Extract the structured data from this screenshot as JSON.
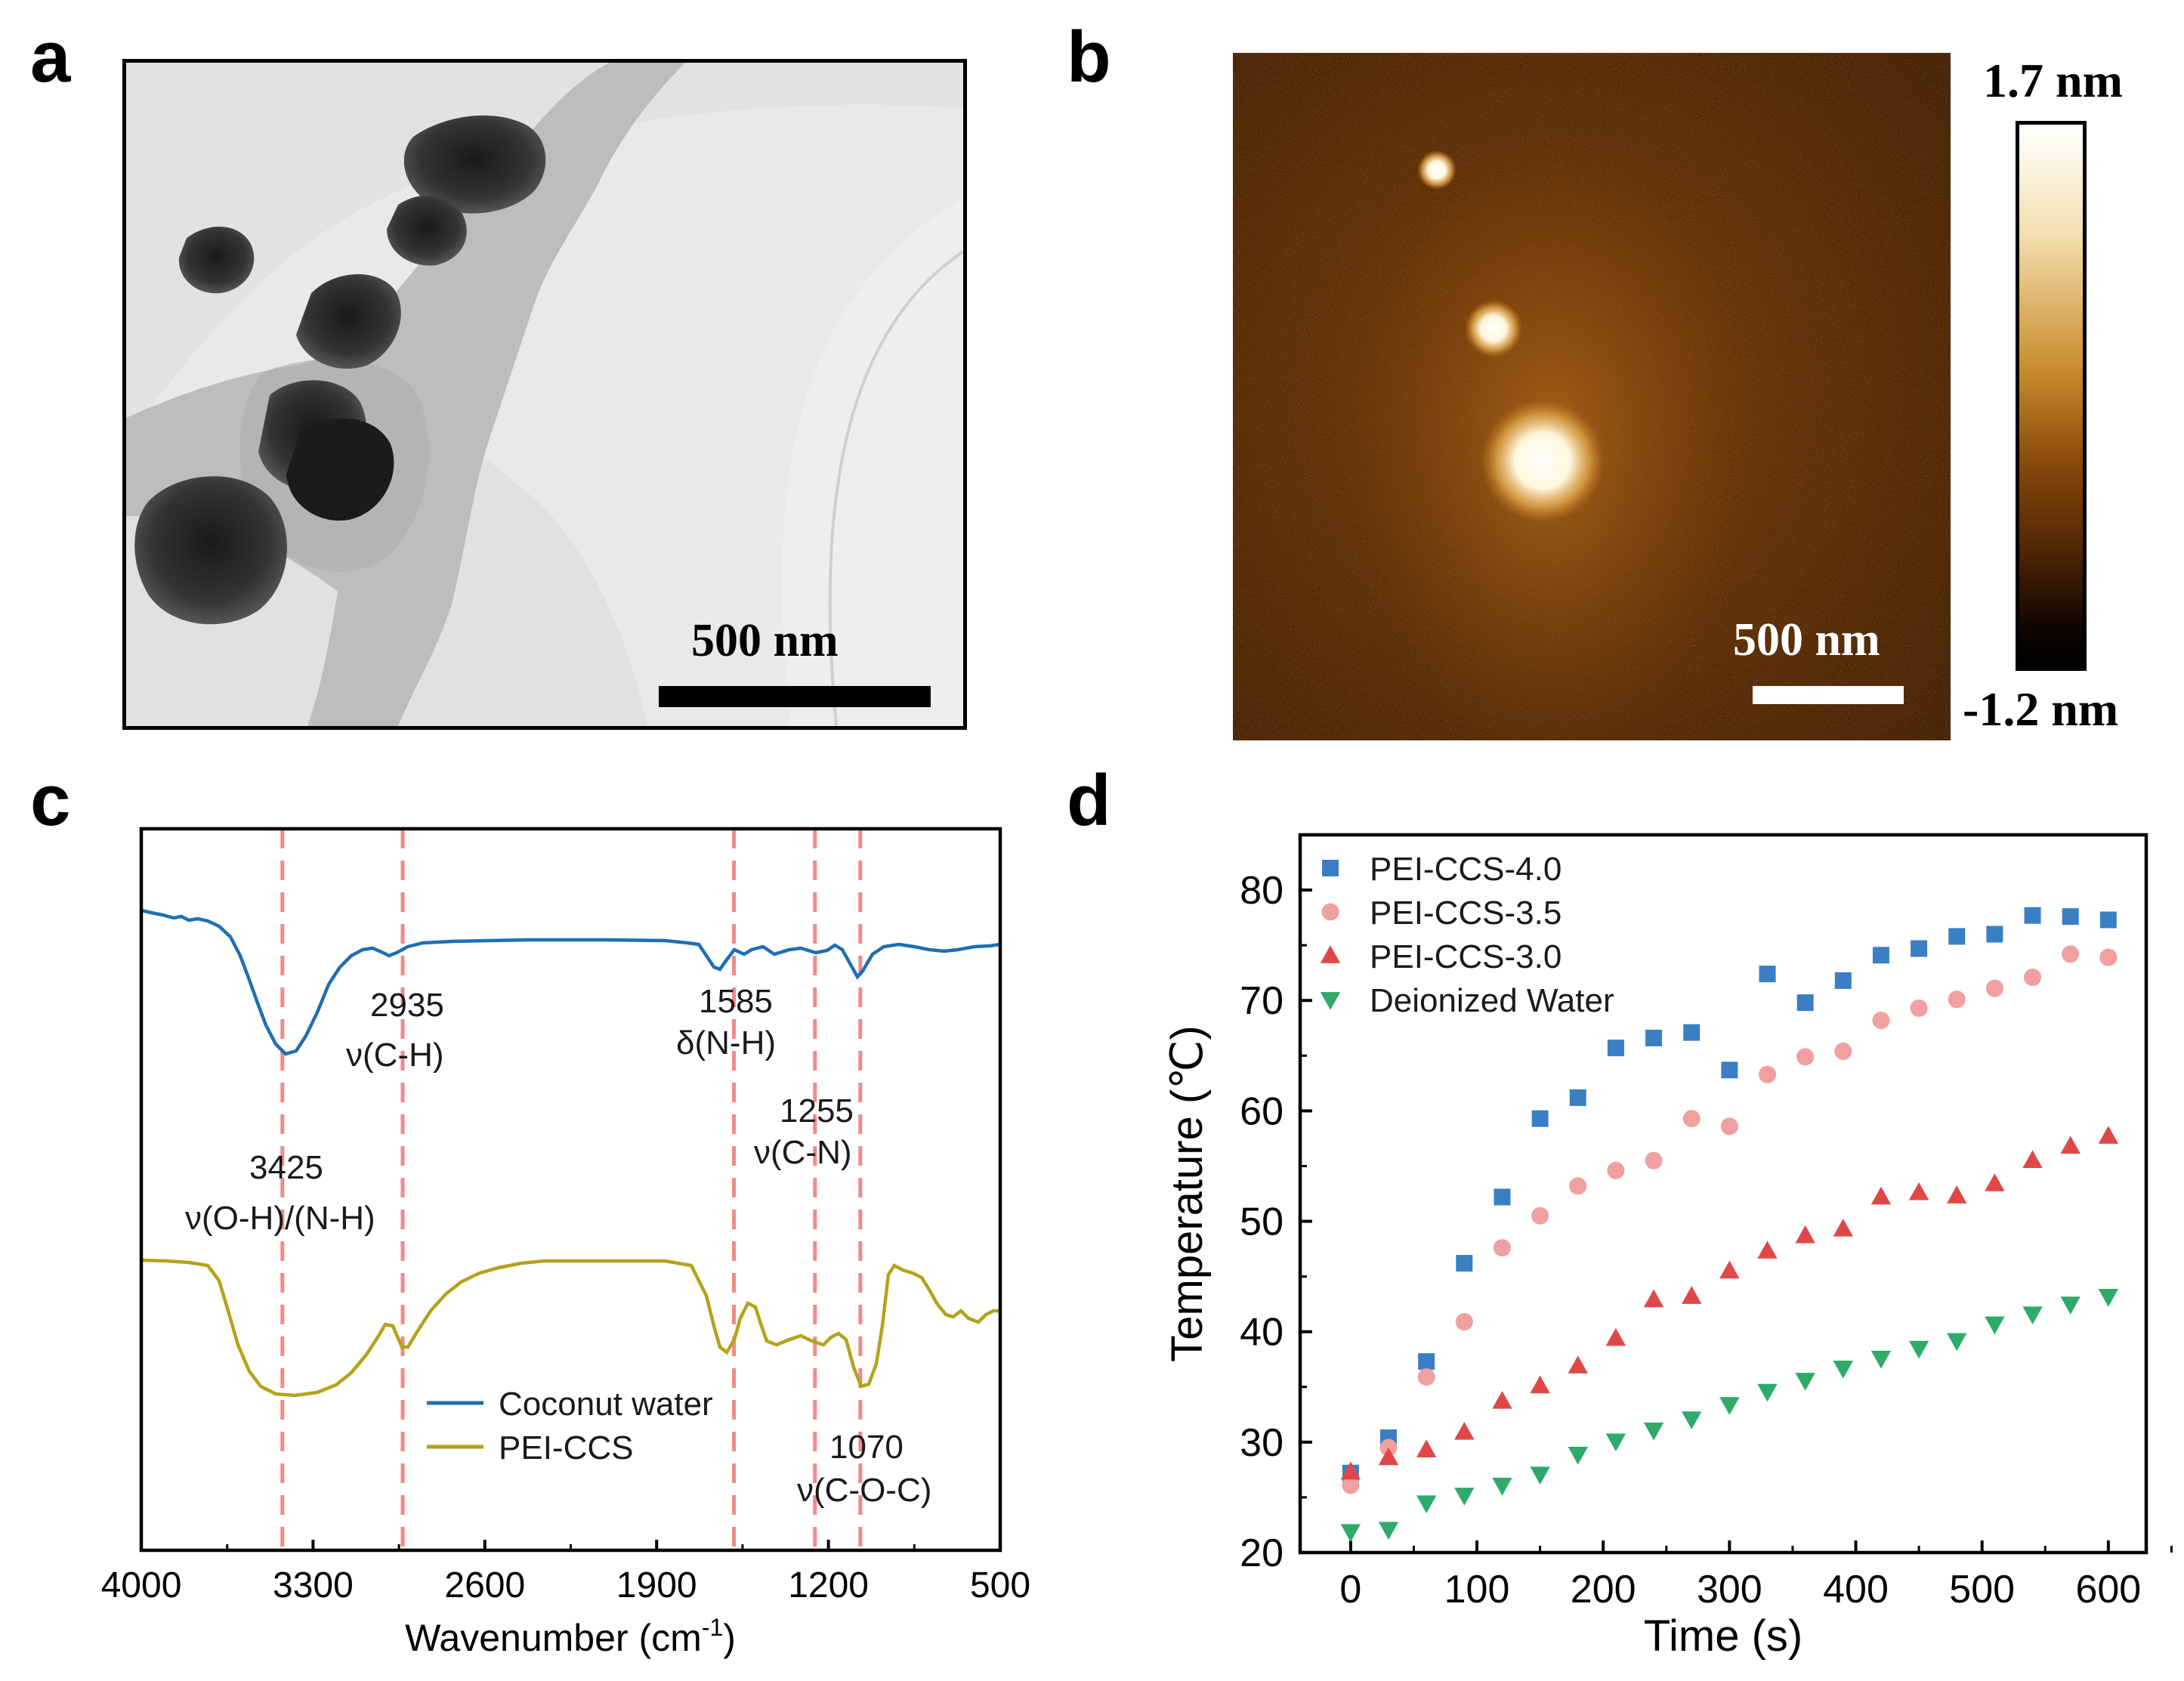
{
  "panels": {
    "a": {
      "letter": "a",
      "scale_bar": "500 nm"
    },
    "b": {
      "letter": "b",
      "scale_bar": "500 nm",
      "colorbar_max": "1.7 nm",
      "colorbar_min": "-1.2 nm"
    },
    "c": {
      "letter": "c"
    },
    "d": {
      "letter": "d"
    }
  },
  "chart_data": [
    {
      "type": "line",
      "panel": "c",
      "xlabel": "Wavenumber (cm",
      "xlabel_sup": "-1",
      "xlabel_end": ")",
      "ylabel": "",
      "xlim": [
        4000,
        500
      ],
      "xticks": [
        "4000",
        "3300",
        "2600",
        "1900",
        "1200",
        "500"
      ],
      "xtick_values": [
        4000,
        3300,
        2600,
        1900,
        1200,
        500
      ],
      "series": [
        {
          "name": "Coconut water",
          "color": "#1f6fb2"
        },
        {
          "name": "PEI-CCS",
          "color": "#b5a21a"
        }
      ],
      "reference_lines": [
        3425,
        2935,
        1585,
        1255,
        1070
      ],
      "reference_color": "#f08a8a",
      "annotations": [
        {
          "wavenumber": "2935",
          "mode": "ν(C-H)"
        },
        {
          "wavenumber": "3425",
          "mode": "ν(O-H)/(N-H)"
        },
        {
          "wavenumber": "1585",
          "mode": "δ(N-H)"
        },
        {
          "wavenumber": "1255",
          "mode": "ν(C-N)"
        },
        {
          "wavenumber": "1070",
          "mode": "ν(C-O-C)"
        }
      ]
    },
    {
      "type": "scatter",
      "panel": "d",
      "xlabel": "Time (s)",
      "ylabel": "Temperature (℃)",
      "xlim": [
        -40,
        630
      ],
      "ylim": [
        20,
        85
      ],
      "xticks": [
        0,
        100,
        200,
        300,
        400,
        500,
        600
      ],
      "yticks": [
        20,
        30,
        40,
        50,
        60,
        70,
        80
      ],
      "x": [
        0,
        30,
        60,
        90,
        120,
        150,
        180,
        210,
        240,
        270,
        300,
        330,
        360,
        390,
        420,
        450,
        480,
        510,
        540,
        570,
        600
      ],
      "series": [
        {
          "name": "PEI-CCS-4.0",
          "marker": "square",
          "color": "#3a7fc4",
          "values": [
            27.2,
            30.4,
            37.3,
            46.2,
            52.2,
            59.3,
            61.2,
            65.7,
            66.6,
            67.1,
            63.7,
            72.4,
            69.8,
            71.8,
            74.1,
            74.7,
            75.8,
            76.0,
            77.7,
            77.6,
            77.3
          ]
        },
        {
          "name": "PEI-CCS-3.5",
          "marker": "circle",
          "color": "#f0a0a0",
          "values": [
            26.1,
            29.5,
            35.9,
            40.9,
            47.6,
            50.5,
            53.2,
            54.6,
            55.5,
            59.3,
            58.6,
            63.3,
            64.9,
            65.4,
            68.2,
            69.3,
            70.1,
            71.1,
            72.1,
            74.2,
            73.9
          ]
        },
        {
          "name": "PEI-CCS-3.0",
          "marker": "triangle-up",
          "color": "#e04848",
          "values": [
            27.3,
            28.6,
            29.3,
            30.9,
            33.7,
            35.1,
            36.9,
            39.4,
            42.9,
            43.2,
            45.5,
            47.3,
            48.7,
            49.3,
            52.2,
            52.6,
            52.3,
            53.4,
            55.5,
            56.8,
            57.7
          ]
        },
        {
          "name": "Deionized Water",
          "marker": "triangle-down",
          "color": "#2eaa6a",
          "values": [
            21.9,
            22.1,
            24.5,
            25.2,
            26.1,
            27.1,
            28.9,
            30.1,
            31.1,
            32.1,
            33.4,
            34.6,
            35.6,
            36.7,
            37.6,
            38.5,
            39.2,
            40.7,
            41.6,
            42.5,
            43.2
          ]
        }
      ]
    }
  ]
}
